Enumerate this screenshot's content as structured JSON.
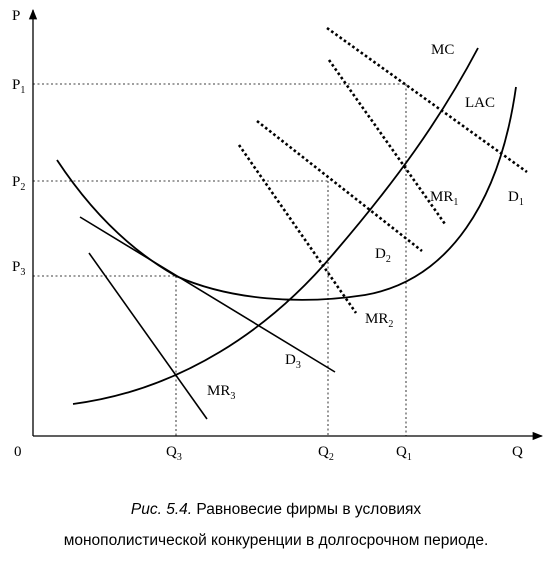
{
  "diagram": {
    "axes": {
      "y_label": "P",
      "x_label": "Q",
      "origin_label": "0"
    },
    "price_ticks": [
      {
        "base": "P",
        "sub": "1"
      },
      {
        "base": "P",
        "sub": "2"
      },
      {
        "base": "P",
        "sub": "3"
      }
    ],
    "quantity_ticks": [
      {
        "base": "Q",
        "sub": "3"
      },
      {
        "base": "Q",
        "sub": "2"
      },
      {
        "base": "Q",
        "sub": "1"
      }
    ],
    "curve_labels": {
      "mc": "MC",
      "lac": "LAC",
      "d1": {
        "base": "D",
        "sub": "1"
      },
      "mr1": {
        "base": "MR",
        "sub": "1"
      },
      "d2": {
        "base": "D",
        "sub": "2"
      },
      "mr2": {
        "base": "MR",
        "sub": "2"
      },
      "d3": {
        "base": "D",
        "sub": "3"
      },
      "mr3": {
        "base": "MR",
        "sub": "3"
      }
    },
    "line_styles": {
      "D1": "dotted",
      "MR1": "dotted",
      "D2": "dotted",
      "MR2": "dotted",
      "D3": "solid",
      "MR3": "solid",
      "MC": "solid",
      "LAC": "solid"
    }
  },
  "caption": {
    "figure_label": "Рис. 5.4.",
    "line1_text": "Равновесие фирмы в условиях",
    "line2_text": "монополистической конкуренции в долгосрочном периоде."
  }
}
